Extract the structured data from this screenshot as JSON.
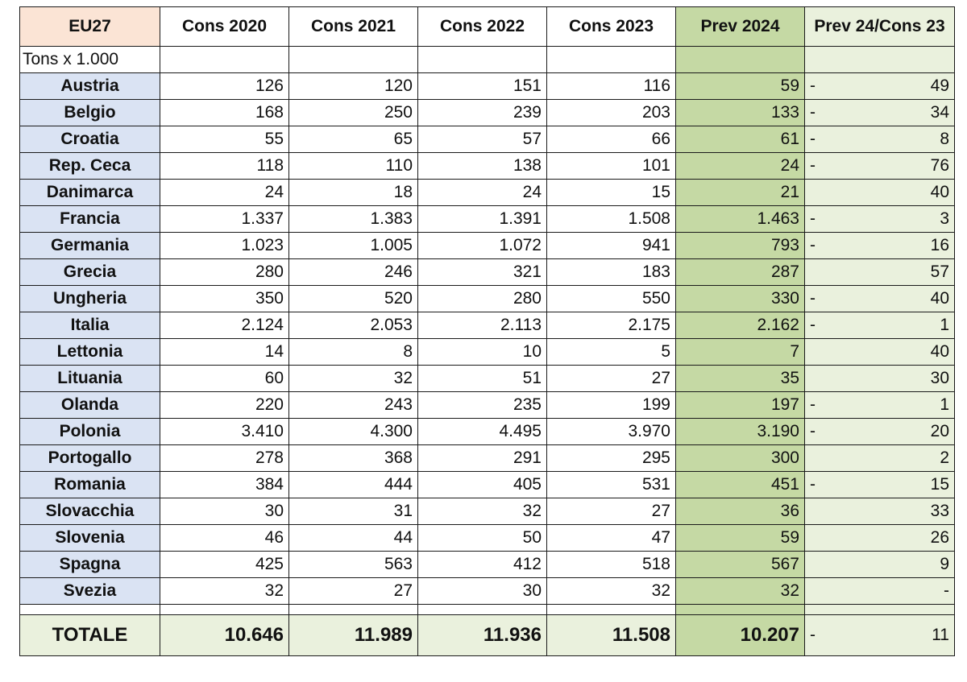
{
  "table": {
    "corner_label": "EU27",
    "units_label": "Tons x 1.000",
    "headers": [
      "Cons 2020",
      "Cons 2021",
      "Cons 2022",
      "Cons 2023",
      "Prev 2024",
      "Prev 24/Cons 23"
    ],
    "rows": [
      {
        "country": "Austria",
        "values": [
          "126",
          "120",
          "151",
          "116",
          "59"
        ],
        "diff_sign": "-",
        "diff": "49"
      },
      {
        "country": "Belgio",
        "values": [
          "168",
          "250",
          "239",
          "203",
          "133"
        ],
        "diff_sign": "-",
        "diff": "34"
      },
      {
        "country": "Croatia",
        "values": [
          "55",
          "65",
          "57",
          "66",
          "61"
        ],
        "diff_sign": "-",
        "diff": "8"
      },
      {
        "country": "Rep. Ceca",
        "values": [
          "118",
          "110",
          "138",
          "101",
          "24"
        ],
        "diff_sign": "-",
        "diff": "76"
      },
      {
        "country": "Danimarca",
        "values": [
          "24",
          "18",
          "24",
          "15",
          "21"
        ],
        "diff_sign": "",
        "diff": "40"
      },
      {
        "country": "Francia",
        "values": [
          "1.337",
          "1.383",
          "1.391",
          "1.508",
          "1.463"
        ],
        "diff_sign": "-",
        "diff": "3"
      },
      {
        "country": "Germania",
        "values": [
          "1.023",
          "1.005",
          "1.072",
          "941",
          "793"
        ],
        "diff_sign": "-",
        "diff": "16"
      },
      {
        "country": "Grecia",
        "values": [
          "280",
          "246",
          "321",
          "183",
          "287"
        ],
        "diff_sign": "",
        "diff": "57"
      },
      {
        "country": "Ungheria",
        "values": [
          "350",
          "520",
          "280",
          "550",
          "330"
        ],
        "diff_sign": "-",
        "diff": "40"
      },
      {
        "country": "Italia",
        "values": [
          "2.124",
          "2.053",
          "2.113",
          "2.175",
          "2.162"
        ],
        "diff_sign": "-",
        "diff": "1"
      },
      {
        "country": "Lettonia",
        "values": [
          "14",
          "8",
          "10",
          "5",
          "7"
        ],
        "diff_sign": "",
        "diff": "40"
      },
      {
        "country": "Lituania",
        "values": [
          "60",
          "32",
          "51",
          "27",
          "35"
        ],
        "diff_sign": "",
        "diff": "30"
      },
      {
        "country": "Olanda",
        "values": [
          "220",
          "243",
          "235",
          "199",
          "197"
        ],
        "diff_sign": "-",
        "diff": "1"
      },
      {
        "country": "Polonia",
        "values": [
          "3.410",
          "4.300",
          "4.495",
          "3.970",
          "3.190"
        ],
        "diff_sign": "-",
        "diff": "20"
      },
      {
        "country": "Portogallo",
        "values": [
          "278",
          "368",
          "291",
          "295",
          "300"
        ],
        "diff_sign": "",
        "diff": "2"
      },
      {
        "country": "Romania",
        "values": [
          "384",
          "444",
          "405",
          "531",
          "451"
        ],
        "diff_sign": "-",
        "diff": "15"
      },
      {
        "country": "Slovacchia",
        "values": [
          "30",
          "31",
          "32",
          "27",
          "36"
        ],
        "diff_sign": "",
        "diff": "33"
      },
      {
        "country": "Slovenia",
        "values": [
          "46",
          "44",
          "50",
          "47",
          "59"
        ],
        "diff_sign": "",
        "diff": "26"
      },
      {
        "country": "Spagna",
        "values": [
          "425",
          "563",
          "412",
          "518",
          "567"
        ],
        "diff_sign": "",
        "diff": "9"
      },
      {
        "country": "Svezia",
        "values": [
          "32",
          "27",
          "30",
          "32",
          "32"
        ],
        "diff_sign": "",
        "diff": "-"
      }
    ],
    "total": {
      "label": "TOTALE",
      "values": [
        "10.646",
        "11.989",
        "11.936",
        "11.508",
        "10.207"
      ],
      "diff_sign": "-",
      "diff": "11"
    }
  },
  "colors": {
    "corner_bg": "#fbe4d5",
    "country_bg": "#dae3f3",
    "prev_bg": "#c5d9a4",
    "diff_bg": "#eaf1dd"
  }
}
